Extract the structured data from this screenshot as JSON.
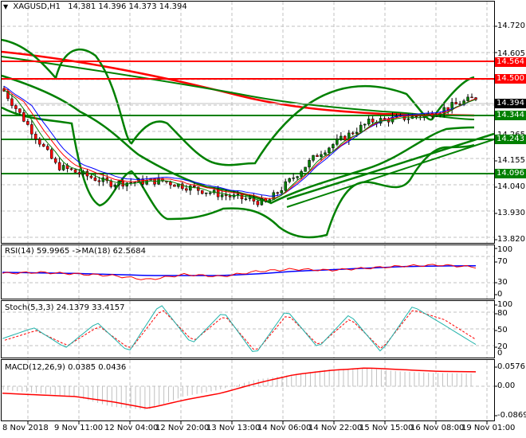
{
  "header": {
    "menu_icon": "triangle-down-icon",
    "symbol": "XAGUSD,H1",
    "ohlc": "14.381 14.396 14.373 14.394"
  },
  "colors": {
    "bull_candle": "#008000",
    "bear_candle": "#ff0000",
    "bollinger": "#008000",
    "ma_red": "#ff0000",
    "ma_blue": "#0000ff",
    "resistance": "#ff0000",
    "support": "#008000",
    "current_price_tag": "#000000",
    "rsi_line": "#ff0000",
    "rsi_ma": "#0000ff",
    "stoch_main": "#20b2aa",
    "stoch_signal": "#ff0000",
    "macd_hist": "#c0c0c0",
    "macd_signal": "#ff0000",
    "grid": "#c0c0c0"
  },
  "price_axis": {
    "ticks": [
      "14.720",
      "14.605",
      "14.265",
      "14.155",
      "14.040",
      "13.930",
      "13.820"
    ],
    "tags": [
      {
        "value": "14.564",
        "color": "#ff0000"
      },
      {
        "value": "14.500",
        "color": "#ff0000"
      },
      {
        "value": "14.394",
        "color": "#000000"
      },
      {
        "value": "14.344",
        "color": "#008000"
      },
      {
        "value": "14.243",
        "color": "#008000"
      },
      {
        "value": "14.096",
        "color": "#008000"
      }
    ]
  },
  "rsi": {
    "title": "RSI(14) 59.9965 ->MA(18) 62.5684",
    "ticks": [
      "100",
      "70",
      "30",
      "0"
    ]
  },
  "stoch": {
    "title": "Stoch(5,3,3) 24.1379 33.4157",
    "ticks": [
      "100",
      "80",
      "50",
      "20",
      "0"
    ]
  },
  "macd": {
    "title": "MACD(12,26,9) 0.0385 0.0436",
    "ticks": [
      "0.0576",
      "0.00",
      "-0.0869"
    ]
  },
  "time_axis": {
    "labels": [
      "8 Nov 2018",
      "9 Nov 11:00",
      "12 Nov 04:00",
      "12 Nov 20:00",
      "13 Nov 13:00",
      "14 Nov 06:00",
      "14 Nov 22:00",
      "15 Nov 15:00",
      "16 Nov 08:00",
      "19 Nov 01:00"
    ]
  },
  "chart_data": [
    {
      "type": "candlestick",
      "title": "XAGUSD,H1",
      "subtitle": "O 14.381 H 14.396 L 14.373 C 14.394",
      "xlabel": "",
      "ylabel": "Price",
      "ylim": [
        13.81,
        14.78
      ],
      "grid": true,
      "x": [
        "8 Nov 2018",
        "9 Nov 11:00",
        "12 Nov 04:00",
        "12 Nov 20:00",
        "13 Nov 13:00",
        "14 Nov 06:00",
        "14 Nov 22:00",
        "15 Nov 15:00",
        "16 Nov 08:00",
        "19 Nov 01:00"
      ],
      "close_approx": [
        14.42,
        14.12,
        14.05,
        14.06,
        14.01,
        13.97,
        14.17,
        14.3,
        14.32,
        14.394
      ],
      "horizontal_levels": {
        "resistance": [
          14.564,
          14.5
        ],
        "support": [
          14.344,
          14.243,
          14.096
        ]
      },
      "current_price": 14.394,
      "annotations": [
        "Bollinger Bands (green)",
        "Moving averages (red, blue, green)",
        "Ascending trendlines (green)",
        "Descending MA (red)"
      ]
    },
    {
      "type": "line",
      "title": "RSI(14) 59.9965 ->MA(18) 62.5684",
      "ylim": [
        0,
        100
      ],
      "ticks": [
        100,
        70,
        30,
        0
      ],
      "series": [
        {
          "name": "RSI(14)",
          "values": [
            48,
            50,
            47,
            44,
            36,
            46,
            42,
            52,
            56,
            54,
            58,
            62,
            64,
            60
          ]
        },
        {
          "name": "MA(18)",
          "values": [
            50,
            49,
            48,
            46,
            44,
            44,
            44,
            47,
            52,
            55,
            58,
            61,
            62,
            62.6
          ]
        }
      ]
    },
    {
      "type": "line",
      "title": "Stoch(5,3,3) 24.1379 33.4157",
      "ylim": [
        0,
        100
      ],
      "ticks": [
        100,
        80,
        50,
        20,
        0
      ],
      "series": [
        {
          "name": "%K",
          "values": [
            35,
            55,
            18,
            65,
            10,
            100,
            25,
            85,
            5,
            88,
            18,
            80,
            10,
            95,
            60,
            24.1
          ]
        },
        {
          "name": "%D",
          "values": [
            32,
            50,
            22,
            58,
            15,
            90,
            30,
            78,
            10,
            80,
            22,
            72,
            15,
            88,
            70,
            33.4
          ]
        }
      ]
    },
    {
      "type": "bar",
      "title": "MACD(12,26,9) 0.0385 0.0436",
      "ylim": [
        -0.0869,
        0.0576
      ],
      "ticks": [
        0.0576,
        0.0,
        -0.0869
      ],
      "series": [
        {
          "name": "MACD histogram",
          "values": [
            -0.01,
            -0.02,
            -0.03,
            -0.06,
            -0.07,
            -0.03,
            -0.01,
            0.02,
            0.035,
            0.05,
            0.055,
            0.045,
            0.04,
            0.0385
          ]
        },
        {
          "name": "Signal",
          "values": [
            -0.02,
            -0.025,
            -0.03,
            -0.045,
            -0.065,
            -0.04,
            -0.02,
            0.01,
            0.035,
            0.048,
            0.055,
            0.05,
            0.045,
            0.0436
          ]
        }
      ]
    }
  ]
}
